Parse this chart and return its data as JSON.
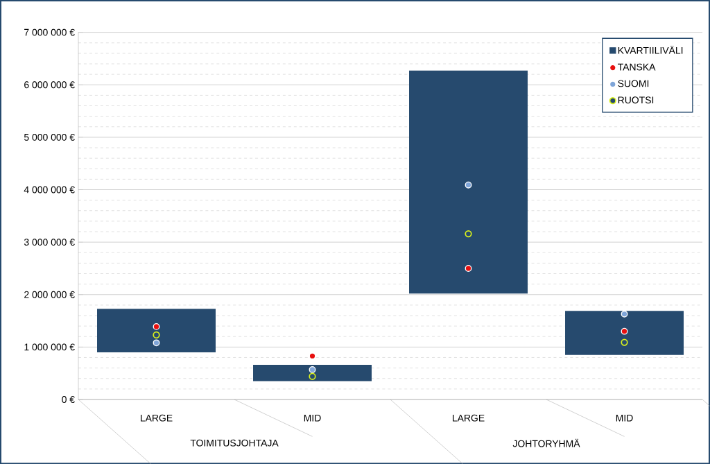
{
  "chart_data": {
    "type": "bar",
    "categories": [
      "LARGE",
      "MID",
      "LARGE",
      "MID"
    ],
    "series": [
      {
        "name": "KVARTIILIVÄLI",
        "color": "#264a6e",
        "base": [
          900000,
          350000,
          2020000,
          850000
        ],
        "values": [
          830000,
          310000,
          4250000,
          840000
        ]
      },
      {
        "name": "TANSKA",
        "type": "scatter",
        "color": "#e8100f",
        "values": [
          1390000,
          830000,
          2500000,
          1300000
        ]
      },
      {
        "name": "SUOMI",
        "type": "scatter",
        "color": "#7fa5d8",
        "values": [
          1080000,
          570000,
          4090000,
          1630000
        ]
      },
      {
        "name": "RUOTSI",
        "type": "scatter",
        "color": "#d8f01c",
        "values": [
          1230000,
          440000,
          3160000,
          1090000
        ]
      }
    ],
    "ylim": [
      0,
      7000000
    ],
    "yticks": [
      {
        "value": 0,
        "label": "0 €"
      },
      {
        "value": 1000000,
        "label": "1 000 000 €"
      },
      {
        "value": 2000000,
        "label": "2 000 000 €"
      },
      {
        "value": 3000000,
        "label": "3 000 000 €"
      },
      {
        "value": 4000000,
        "label": "4 000 000 €"
      },
      {
        "value": 5000000,
        "label": "5 000 000 €"
      },
      {
        "value": 6000000,
        "label": "6 000 000 €"
      },
      {
        "value": 7000000,
        "label": "7 000 000 €"
      }
    ],
    "annotations": [
      "TOIMITUSJOHTAJA",
      "JOHTORYHMÄ"
    ],
    "grid": "y",
    "legend": "top right",
    "marker": "circle"
  }
}
